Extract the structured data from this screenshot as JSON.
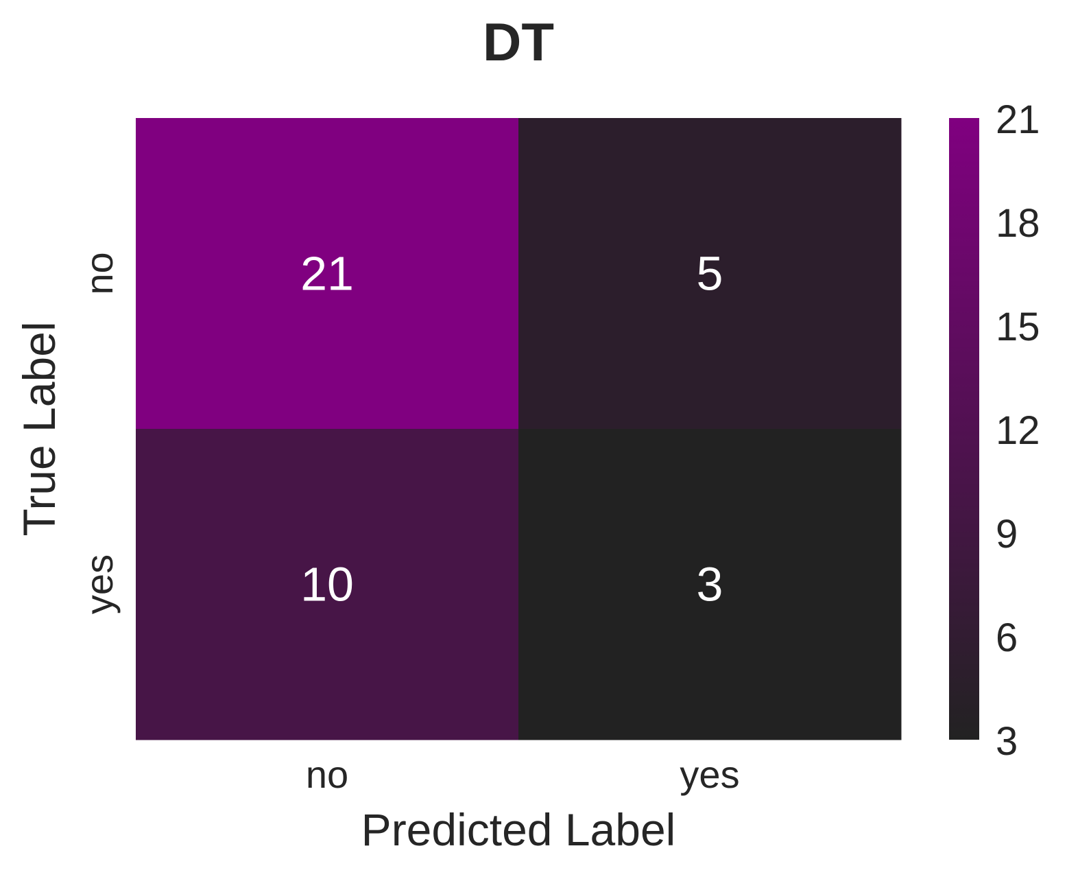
{
  "chart_data": {
    "type": "heatmap",
    "title": "DT",
    "xlabel": "Predicted Label",
    "ylabel": "True Label",
    "x_categories": [
      "no",
      "yes"
    ],
    "y_categories": [
      "no",
      "yes"
    ],
    "values": [
      [
        21,
        5
      ],
      [
        10,
        3
      ]
    ],
    "colorbar": {
      "vmin": 3,
      "vmax": 21,
      "ticks": [
        3,
        6,
        9,
        12,
        15,
        18,
        21
      ],
      "colors": [
        "#222222",
        "#800080"
      ]
    },
    "annotation_color": "#ffffff",
    "text_color": "#262626"
  }
}
